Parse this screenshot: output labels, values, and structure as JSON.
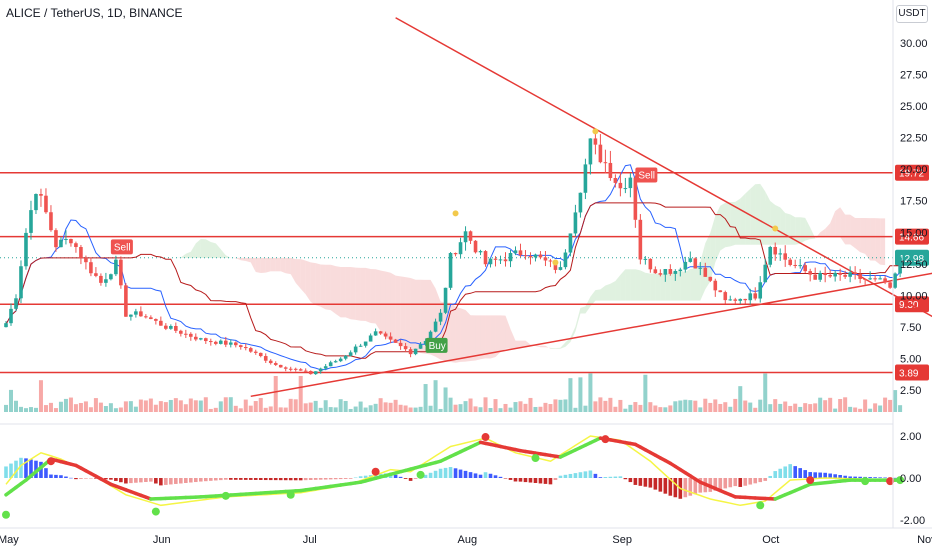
{
  "header": {
    "title": "ALICE / TetherUS, 1D, BINANCE",
    "currency": "USDT"
  },
  "colors": {
    "up": "#26a69a",
    "down": "#ef5350",
    "hline": "#e53935",
    "trend": "#e53935",
    "tenkan": "#2962ff",
    "kijun": "#b71c1c",
    "cloud_bull": "#a5d6a7",
    "cloud_bear": "#ef9a9a",
    "macd_fast": "#f5f545",
    "macd_slow_up": "#62e14a",
    "macd_slow_down": "#e53935",
    "hist_pos_light": "#80deea",
    "hist_pos_dark": "#3d5afe",
    "hist_neg_light": "#ef9a9a",
    "hist_neg_dark": "#c62828",
    "signal_buy": "#43a047",
    "signal_sell": "#ef5350",
    "dot": "#f2c94c"
  },
  "chart_data": [
    {
      "type": "candlestick",
      "title": "ALICE / TetherUS, 1D, BINANCE",
      "ylabel": "USDT",
      "ylim": [
        2.5,
        30.0
      ],
      "y_ticks": [
        "30.00",
        "27.50",
        "25.00",
        "22.50",
        "20.00",
        "17.50",
        "15.00",
        "12.50",
        "10.00",
        "7.50",
        "5.00",
        "2.50"
      ],
      "x_ticks": [
        {
          "label": "May",
          "day": 1
        },
        {
          "label": "Jun",
          "day": 32
        },
        {
          "label": "Jul",
          "day": 62
        },
        {
          "label": "Aug",
          "day": 93
        },
        {
          "label": "Sep",
          "day": 124
        },
        {
          "label": "Oct",
          "day": 154
        },
        {
          "label": "Nov",
          "day": 185
        }
      ],
      "horizontal_levels": [
        {
          "value": 19.72,
          "label": "19.72"
        },
        {
          "value": 14.66,
          "label": "14.66"
        },
        {
          "value": 9.3,
          "label": "9.30"
        },
        {
          "value": 3.89,
          "label": "3.89"
        }
      ],
      "last_price": {
        "value": 12.98,
        "label": "12.98"
      },
      "close_anchors": [
        {
          "day": 1,
          "close": 7.8
        },
        {
          "day": 3,
          "close": 10.0
        },
        {
          "day": 5,
          "close": 15.0
        },
        {
          "day": 7,
          "close": 18.5
        },
        {
          "day": 9,
          "close": 16.5
        },
        {
          "day": 11,
          "close": 14.0
        },
        {
          "day": 14,
          "close": 14.5
        },
        {
          "day": 17,
          "close": 12.5
        },
        {
          "day": 20,
          "close": 11.0
        },
        {
          "day": 23,
          "close": 12.5
        },
        {
          "day": 25,
          "close": 8.5
        },
        {
          "day": 28,
          "close": 8.5
        },
        {
          "day": 33,
          "close": 7.5
        },
        {
          "day": 40,
          "close": 6.5
        },
        {
          "day": 48,
          "close": 6.0
        },
        {
          "day": 55,
          "close": 4.5
        },
        {
          "day": 62,
          "close": 3.8
        },
        {
          "day": 68,
          "close": 5.0
        },
        {
          "day": 75,
          "close": 7.0
        },
        {
          "day": 82,
          "close": 5.5
        },
        {
          "day": 85,
          "close": 6.5
        },
        {
          "day": 88,
          "close": 8.5
        },
        {
          "day": 90,
          "close": 13.0
        },
        {
          "day": 93,
          "close": 15.0
        },
        {
          "day": 97,
          "close": 12.5
        },
        {
          "day": 105,
          "close": 13.5
        },
        {
          "day": 112,
          "close": 12.0
        },
        {
          "day": 115,
          "close": 17.0
        },
        {
          "day": 118,
          "close": 22.0
        },
        {
          "day": 121,
          "close": 20.5
        },
        {
          "day": 124,
          "close": 18.5
        },
        {
          "day": 126,
          "close": 19.5
        },
        {
          "day": 128,
          "close": 13.0
        },
        {
          "day": 131,
          "close": 12.0
        },
        {
          "day": 135,
          "close": 12.0
        },
        {
          "day": 138,
          "close": 13.0
        },
        {
          "day": 141,
          "close": 11.5
        },
        {
          "day": 145,
          "close": 9.5
        },
        {
          "day": 148,
          "close": 9.8
        },
        {
          "day": 151,
          "close": 10.0
        },
        {
          "day": 154,
          "close": 14.0
        },
        {
          "day": 158,
          "close": 12.5
        },
        {
          "day": 163,
          "close": 11.5
        },
        {
          "day": 170,
          "close": 11.5
        },
        {
          "day": 177,
          "close": 11.0
        },
        {
          "day": 178,
          "close": 10.3
        },
        {
          "day": 180,
          "close": 12.98
        }
      ],
      "signals": [
        {
          "type": "Sell",
          "day": 24,
          "price": 13.8
        },
        {
          "type": "Buy",
          "day": 87,
          "price": 6.0
        },
        {
          "type": "Sell",
          "day": 129,
          "price": 19.5
        }
      ],
      "dots": [
        {
          "day": 91,
          "price": 16.5
        },
        {
          "day": 119,
          "price": 23.0
        },
        {
          "day": 155,
          "price": 15.3
        },
        {
          "day": 111,
          "price": 12.6
        }
      ],
      "trendlines": [
        {
          "from": {
            "day": 79,
            "price": 32.0
          },
          "to": {
            "day": 197,
            "price": 6.0
          }
        },
        {
          "from": {
            "day": 50,
            "price": 2.0
          },
          "to": {
            "day": 197,
            "price": 12.5
          }
        }
      ],
      "volume": "per-candle volume bars"
    },
    {
      "type": "line",
      "title": "",
      "ylim": [
        -2.0,
        2.5
      ],
      "y_ticks": [
        "2.00",
        "0.00",
        "-2.00"
      ],
      "series": [
        {
          "values_anchor": [
            {
              "day": 1,
              "v": -0.3
            },
            {
              "day": 4,
              "v": 0.6
            },
            {
              "day": 8,
              "v": 1.2
            },
            {
              "day": 12,
              "v": 0.9
            },
            {
              "day": 18,
              "v": 0.2
            },
            {
              "day": 25,
              "v": -0.8
            },
            {
              "day": 32,
              "v": -1.3
            },
            {
              "day": 45,
              "v": -0.9
            },
            {
              "day": 60,
              "v": -0.7
            },
            {
              "day": 70,
              "v": -0.3
            },
            {
              "day": 78,
              "v": 0.4
            },
            {
              "day": 82,
              "v": 0.3
            },
            {
              "day": 90,
              "v": 1.5
            },
            {
              "day": 97,
              "v": 1.9
            },
            {
              "day": 103,
              "v": 1.2
            },
            {
              "day": 110,
              "v": 0.8
            },
            {
              "day": 118,
              "v": 2.0
            },
            {
              "day": 124,
              "v": 1.8
            },
            {
              "day": 130,
              "v": 0.8
            },
            {
              "day": 136,
              "v": -0.5
            },
            {
              "day": 142,
              "v": -1.0
            },
            {
              "day": 148,
              "v": -1.3
            },
            {
              "day": 153,
              "v": -1.1
            },
            {
              "day": 158,
              "v": -0.1
            },
            {
              "day": 165,
              "v": 0.0
            },
            {
              "day": 180,
              "v": -0.1
            }
          ]
        },
        {
          "values_anchor": [
            {
              "day": 1,
              "v": -0.8
            },
            {
              "day": 5,
              "v": -0.1
            },
            {
              "day": 10,
              "v": 0.9
            },
            {
              "day": 15,
              "v": 0.6
            },
            {
              "day": 22,
              "v": -0.3
            },
            {
              "day": 30,
              "v": -1.0
            },
            {
              "day": 40,
              "v": -0.9
            },
            {
              "day": 60,
              "v": -0.6
            },
            {
              "day": 72,
              "v": -0.2
            },
            {
              "day": 80,
              "v": 0.3
            },
            {
              "day": 88,
              "v": 0.8
            },
            {
              "day": 96,
              "v": 1.7
            },
            {
              "day": 104,
              "v": 1.3
            },
            {
              "day": 112,
              "v": 1.0
            },
            {
              "day": 120,
              "v": 1.9
            },
            {
              "day": 127,
              "v": 1.6
            },
            {
              "day": 134,
              "v": 0.7
            },
            {
              "day": 140,
              "v": -0.2
            },
            {
              "day": 147,
              "v": -0.9
            },
            {
              "day": 155,
              "v": -1.0
            },
            {
              "day": 162,
              "v": -0.3
            },
            {
              "day": 170,
              "v": -0.1
            },
            {
              "day": 180,
              "v": -0.1
            }
          ]
        }
      ],
      "cross_markers": [
        {
          "day": 1,
          "v": -1.75,
          "color": "up"
        },
        {
          "day": 10,
          "v": 0.8,
          "color": "down"
        },
        {
          "day": 31,
          "v": -1.6,
          "color": "up"
        },
        {
          "day": 45,
          "v": -0.85,
          "color": "up"
        },
        {
          "day": 58,
          "v": -0.8,
          "color": "up"
        },
        {
          "day": 75,
          "v": 0.3,
          "color": "down"
        },
        {
          "day": 84,
          "v": 0.15,
          "color": "up"
        },
        {
          "day": 97,
          "v": 1.95,
          "color": "down"
        },
        {
          "day": 107,
          "v": 0.95,
          "color": "up"
        },
        {
          "day": 121,
          "v": 1.85,
          "color": "down"
        },
        {
          "day": 152,
          "v": -1.3,
          "color": "up"
        },
        {
          "day": 162,
          "v": -0.1,
          "color": "down"
        },
        {
          "day": 173,
          "v": -0.15,
          "color": "up"
        },
        {
          "day": 178,
          "v": -0.15,
          "color": "down"
        },
        {
          "day": 180,
          "v": -0.1,
          "color": "up"
        }
      ]
    }
  ]
}
